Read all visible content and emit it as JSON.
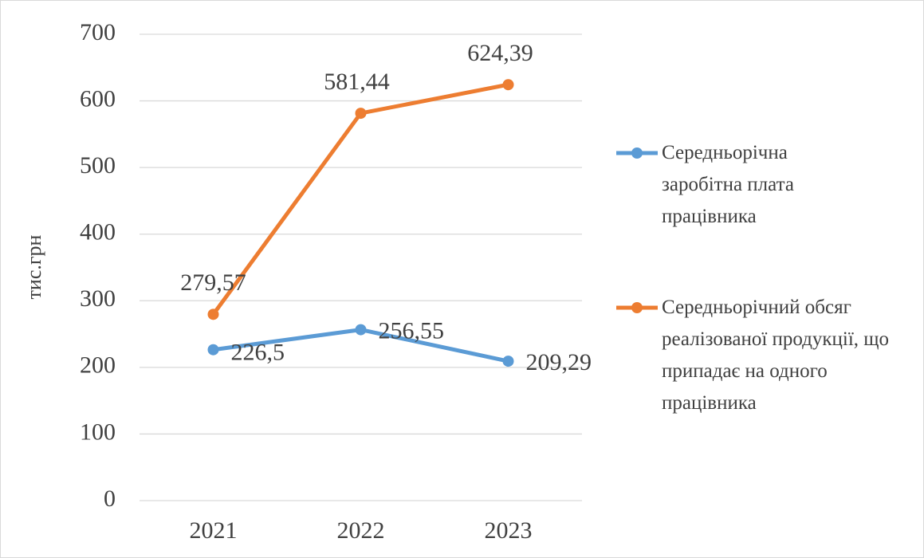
{
  "chart_data": {
    "type": "line",
    "y_label": "тис.грн",
    "categories": [
      "2021",
      "2022",
      "2023"
    ],
    "series": [
      {
        "name": "Середньорічна заробітна плата працівника",
        "color": "#5b9bd5",
        "values": [
          226.5,
          256.55,
          209.29
        ],
        "value_labels": [
          "226,5",
          "256,55",
          "209,29"
        ]
      },
      {
        "name": "Середньорічний обсяг реалізованої продукції, що припадає на одного працівника",
        "color": "#ed7d31",
        "values": [
          279.57,
          581.44,
          624.39
        ],
        "value_labels": [
          "279,57",
          "581,44",
          "624,39"
        ]
      }
    ],
    "ylim": [
      0,
      700
    ],
    "yticks": [
      0,
      100,
      200,
      300,
      400,
      500,
      600,
      700
    ],
    "grid": true,
    "legend": "right"
  }
}
